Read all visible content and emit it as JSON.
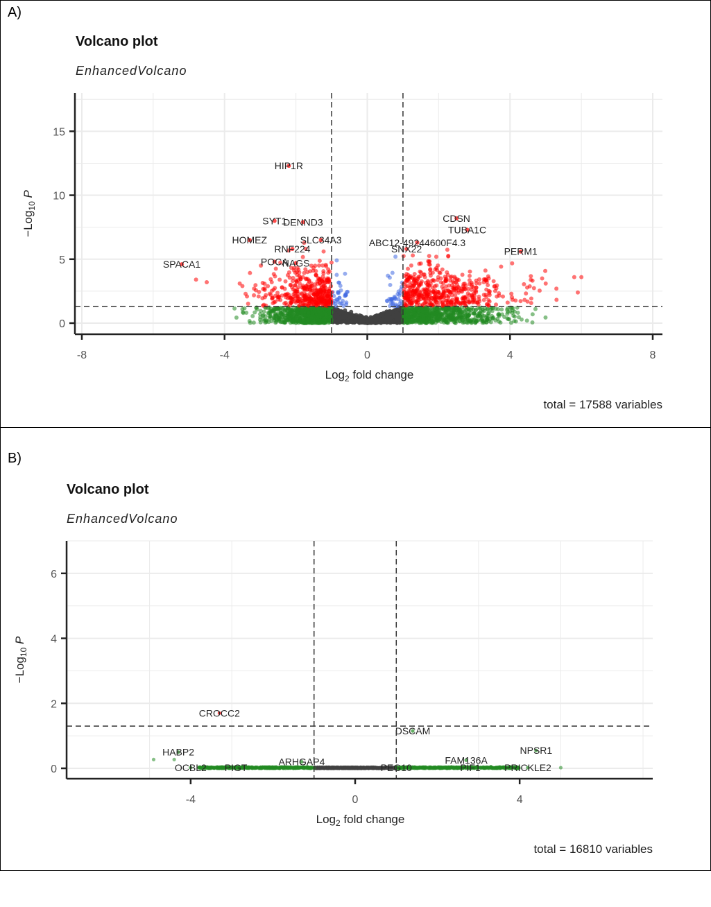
{
  "panels": [
    {
      "label": "A)"
    },
    {
      "label": "B)"
    }
  ],
  "colors": {
    "ns": "#404040",
    "log2fc": "#228B22",
    "p": "#4169E1",
    "p_and_log2fc": "#FF0000",
    "grid": "#EBEBEB",
    "cutoff_line": "#333333"
  },
  "chart_data": [
    {
      "type": "scatter",
      "panel": "A)",
      "title": "Volcano plot",
      "subtitle": "EnhancedVolcano",
      "xlabel": "Log2 fold change",
      "ylabel": "-Log10 P",
      "caption": "total = 17588 variables",
      "xlim": [
        -8,
        8
      ],
      "ylim": [
        0,
        18
      ],
      "xticks": [
        -8,
        -4,
        0,
        4,
        8
      ],
      "yticks": [
        0,
        5,
        10,
        15
      ],
      "grid": true,
      "fc_cutoff": 1,
      "p_cutoff_neglog10": 1.3,
      "series": [
        {
          "name": "NS",
          "color_key": "ns",
          "description": "|log2FC|<1 and -log10P<1.3, dense V-shaped cloud near origin"
        },
        {
          "name": "Log2 FC",
          "color_key": "log2fc",
          "description": "|log2FC|>=1, -log10P<1.3, spans approx -3.9 to 5.5"
        },
        {
          "name": "p-value",
          "color_key": "p",
          "description": "|log2FC|<1, -log10P 1.3 to ~5.3"
        },
        {
          "name": "p-value and log2 FC",
          "color_key": "p_and_log2fc",
          "description": "|log2FC|>=1, -log10P>=1.3"
        }
      ],
      "labelled_points": [
        {
          "gene": "HIP1R",
          "x": -2.2,
          "y": 12.3
        },
        {
          "gene": "SYT1",
          "x": -2.6,
          "y": 8.0
        },
        {
          "gene": "DENND3",
          "x": -1.8,
          "y": 7.9
        },
        {
          "gene": "HOMEZ",
          "x": -3.3,
          "y": 6.5
        },
        {
          "gene": "SLC34A3",
          "x": -1.3,
          "y": 6.5
        },
        {
          "gene": "RNF224",
          "x": -2.1,
          "y": 5.8
        },
        {
          "gene": "NAGS",
          "x": -2.0,
          "y": 4.7
        },
        {
          "gene": "POCA",
          "x": -2.6,
          "y": 4.8
        },
        {
          "gene": "SPACA1",
          "x": -5.2,
          "y": 4.6
        },
        {
          "gene": "CDSN",
          "x": 2.5,
          "y": 8.2
        },
        {
          "gene": "TUBA1C",
          "x": 2.8,
          "y": 7.3
        },
        {
          "gene": "ABC12-49244600F4.3",
          "x": 1.4,
          "y": 6.3
        },
        {
          "gene": "SNX22",
          "x": 1.1,
          "y": 5.8
        },
        {
          "gene": "PERM1",
          "x": 4.3,
          "y": 5.6
        }
      ]
    },
    {
      "type": "scatter",
      "panel": "B)",
      "title": "Volcano plot",
      "subtitle": "EnhancedVolcano",
      "xlabel": "Log2 fold change",
      "ylabel": "-Log10 P",
      "caption": "total = 16810 variables",
      "xlim": [
        -7,
        7
      ],
      "ylim": [
        0,
        7
      ],
      "xticks": [
        -4,
        0,
        4
      ],
      "yticks": [
        0,
        2,
        4,
        6
      ],
      "grid": true,
      "fc_cutoff": 1,
      "p_cutoff_neglog10": 1.3,
      "series": [
        {
          "name": "NS",
          "color_key": "ns",
          "description": "|log2FC|<1, -log10P near 0"
        },
        {
          "name": "Log2 FC",
          "color_key": "log2fc",
          "description": "|log2FC|>=1, -log10P near 0, spans approx -4.9 to 5"
        },
        {
          "name": "p-value and log2 FC",
          "color_key": "p_and_log2fc",
          "description": "single point CROCC2"
        }
      ],
      "labelled_points": [
        {
          "gene": "CROCC2",
          "x": -3.3,
          "y": 1.7
        },
        {
          "gene": "DSCAM",
          "x": 1.4,
          "y": 1.15
        },
        {
          "gene": "HABP2",
          "x": -4.3,
          "y": 0.5
        },
        {
          "gene": "OCBL2",
          "x": -4.0,
          "y": 0.02
        },
        {
          "gene": "PIGT",
          "x": -2.9,
          "y": 0.02
        },
        {
          "gene": "ARHGAP4",
          "x": -1.3,
          "y": 0.2
        },
        {
          "gene": "PEG10",
          "x": 1.0,
          "y": 0.02
        },
        {
          "gene": "FAM136A",
          "x": 2.7,
          "y": 0.25
        },
        {
          "gene": "PIF1",
          "x": 2.8,
          "y": 0.02
        },
        {
          "gene": "NPSR1",
          "x": 4.4,
          "y": 0.55
        },
        {
          "gene": "PRICKLE2",
          "x": 4.2,
          "y": 0.02
        }
      ]
    }
  ]
}
